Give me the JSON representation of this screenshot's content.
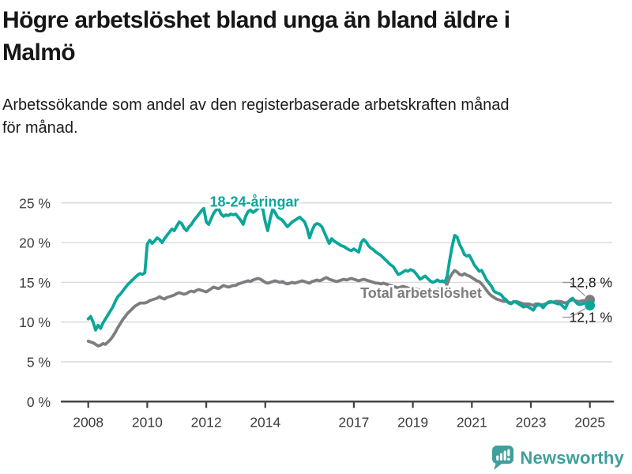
{
  "header": {
    "title_lines": [
      "Högre arbetslöshet bland unga än bland äldre i",
      "Malmö"
    ],
    "subtitle_lines": [
      "Arbetssökande som andel av den registerbaserade arbetskraften månad",
      "för månad."
    ]
  },
  "chart_data": {
    "type": "line",
    "title": "Högre arbetslöshet bland unga än bland äldre i Malmö",
    "unit": "%",
    "frequency": "monthly",
    "grid": "horizontal",
    "legend": "inline-labels",
    "xlim": [
      2007.1,
      2025.8
    ],
    "ylim": [
      0,
      26.5
    ],
    "x_ticks": [
      2008,
      2010,
      2012,
      2014,
      2017,
      2019,
      2021,
      2023,
      2025
    ],
    "x_tick_labels": [
      "2008",
      "2010",
      "2012",
      "2014",
      "2017",
      "2019",
      "2021",
      "2023",
      "2025"
    ],
    "y_ticks": [
      0,
      5,
      10,
      15,
      20,
      25
    ],
    "y_tick_labels": [
      "0 %",
      "5 %",
      "10 %",
      "15 %",
      "20 %",
      "25 %"
    ],
    "series": [
      {
        "id": "total",
        "name": "Total arbetslöshet",
        "color": "#7d7d81",
        "start_year": 2008,
        "end_label": "12,8 %",
        "end_label_position": "above",
        "values": [
          7.6,
          7.5,
          7.4,
          7.2,
          7.0,
          7.1,
          7.3,
          7.2,
          7.5,
          7.8,
          8.2,
          8.7,
          9.3,
          9.8,
          10.3,
          10.7,
          11.1,
          11.4,
          11.7,
          12.0,
          12.2,
          12.4,
          12.4,
          12.4,
          12.5,
          12.7,
          12.8,
          12.9,
          13.0,
          13.2,
          13.0,
          12.9,
          13.1,
          13.2,
          13.3,
          13.4,
          13.6,
          13.7,
          13.6,
          13.5,
          13.6,
          13.8,
          13.9,
          13.8,
          14.0,
          14.1,
          14.0,
          13.9,
          13.8,
          14.0,
          14.2,
          14.4,
          14.3,
          14.2,
          14.4,
          14.6,
          14.5,
          14.4,
          14.5,
          14.6,
          14.6,
          14.8,
          14.9,
          15.0,
          15.1,
          15.2,
          15.1,
          15.3,
          15.4,
          15.5,
          15.4,
          15.2,
          15.0,
          14.9,
          15.0,
          15.1,
          15.2,
          15.1,
          15.0,
          15.1,
          14.9,
          14.8,
          14.9,
          15.0,
          14.9,
          15.0,
          15.1,
          15.2,
          15.1,
          15.0,
          14.9,
          15.1,
          15.2,
          15.3,
          15.2,
          15.3,
          15.5,
          15.6,
          15.4,
          15.3,
          15.2,
          15.1,
          15.2,
          15.3,
          15.4,
          15.3,
          15.4,
          15.5,
          15.4,
          15.3,
          15.2,
          15.3,
          15.4,
          15.3,
          15.2,
          15.1,
          15.0,
          14.9,
          14.9,
          14.8,
          14.9,
          14.8,
          14.7,
          14.6,
          14.5,
          14.4,
          14.3,
          14.4,
          14.5,
          14.4,
          14.3,
          14.2,
          14.3,
          14.2,
          14.1,
          14.0,
          13.9,
          14.0,
          14.1,
          14.0,
          13.9,
          14.0,
          14.1,
          14.2,
          14.2,
          14.3,
          14.8,
          15.6,
          16.1,
          16.5,
          16.3,
          16.0,
          15.9,
          16.1,
          15.9,
          15.8,
          15.6,
          15.4,
          15.2,
          15.1,
          14.8,
          14.4,
          14.0,
          13.6,
          13.3,
          13.1,
          12.9,
          12.8,
          12.7,
          12.6,
          12.6,
          12.5,
          12.4,
          12.5,
          12.6,
          12.5,
          12.4,
          12.3,
          12.3,
          12.3,
          12.2,
          12.1,
          12.3,
          12.3,
          12.2,
          12.2,
          12.3,
          12.4,
          12.5,
          12.5,
          12.6,
          12.6,
          12.6,
          12.5,
          12.4,
          12.5,
          12.7,
          12.8,
          12.7,
          12.6,
          12.6,
          12.7,
          12.7,
          12.8,
          12.8
        ]
      },
      {
        "id": "youth",
        "name": "18-24-åringar",
        "color": "#0ba69a",
        "start_year": 2008,
        "end_label": "12,1 %",
        "end_label_position": "below",
        "values": [
          10.4,
          10.7,
          10.0,
          9.0,
          9.6,
          9.2,
          9.9,
          10.4,
          10.9,
          11.4,
          11.9,
          12.6,
          13.2,
          13.5,
          13.9,
          14.3,
          14.7,
          15.0,
          15.3,
          15.6,
          15.9,
          16.1,
          16.0,
          16.2,
          19.8,
          20.3,
          19.9,
          20.2,
          20.6,
          20.4,
          20.0,
          20.5,
          20.9,
          21.3,
          21.7,
          21.5,
          22.1,
          22.6,
          22.4,
          21.8,
          21.5,
          22.0,
          22.3,
          22.8,
          23.2,
          23.6,
          24.0,
          24.3,
          22.6,
          22.3,
          23.0,
          23.7,
          24.1,
          24.3,
          23.6,
          23.3,
          23.5,
          23.4,
          23.6,
          23.5,
          23.6,
          23.2,
          22.8,
          22.3,
          23.3,
          23.9,
          24.1,
          23.8,
          24.0,
          24.3,
          24.5,
          24.2,
          22.6,
          21.5,
          23.0,
          24.2,
          23.8,
          23.2,
          23.0,
          22.8,
          22.4,
          22.0,
          22.3,
          22.6,
          22.8,
          23.0,
          23.2,
          22.9,
          22.6,
          21.8,
          20.6,
          21.5,
          22.2,
          22.4,
          22.3,
          22.0,
          21.3,
          20.6,
          19.9,
          20.5,
          20.2,
          20.0,
          19.8,
          19.6,
          19.5,
          19.3,
          19.1,
          19.0,
          19.2,
          19.0,
          18.8,
          20.0,
          20.4,
          20.1,
          19.6,
          19.3,
          19.1,
          18.8,
          18.6,
          18.4,
          18.1,
          17.8,
          17.5,
          17.2,
          17.0,
          16.5,
          16.0,
          16.1,
          16.3,
          16.5,
          16.4,
          16.6,
          16.5,
          16.2,
          15.8,
          15.4,
          15.6,
          15.8,
          15.5,
          15.2,
          15.0,
          15.1,
          15.3,
          15.1,
          15.2,
          15.0,
          15.8,
          17.8,
          19.5,
          20.9,
          20.7,
          19.8,
          19.2,
          18.5,
          18.3,
          18.4,
          17.8,
          17.2,
          16.8,
          16.4,
          16.5,
          15.9,
          15.3,
          14.9,
          14.5,
          13.9,
          13.7,
          13.6,
          13.4,
          13.0,
          12.8,
          12.4,
          12.3,
          12.6,
          12.5,
          12.3,
          12.1,
          11.9,
          12.0,
          11.9,
          11.7,
          11.5,
          12.0,
          12.2,
          12.1,
          11.8,
          12.2,
          12.5,
          12.6,
          12.5,
          12.4,
          12.3,
          12.3,
          12.0,
          11.7,
          12.4,
          12.8,
          13.0,
          12.6,
          12.3,
          12.2,
          12.3,
          12.4,
          12.3,
          12.1
        ]
      }
    ],
    "annotations": [
      {
        "id": "series-label-youth",
        "text": "18-24-åringar",
        "x": 2013.63,
        "y": 24.55,
        "color": "#0ba69a"
      },
      {
        "id": "series-label-total",
        "text": "Total arbetslöshet",
        "x": 2019.28,
        "y": 13.05,
        "color": "#7d7d81"
      }
    ],
    "style": {
      "grid_color": "#d9d9d9",
      "axis_color": "#3f3f3f",
      "axis_text_color": "#3c3c3c",
      "value_text_color": "#1a1a1a",
      "leader_color": "#9b9b9b",
      "background": "#ffffff"
    }
  },
  "footer": {
    "brand": "Newsworthy",
    "brand_color": "#3f9f9b",
    "logo_icon": "bar-chart-speech-bubble-icon"
  }
}
